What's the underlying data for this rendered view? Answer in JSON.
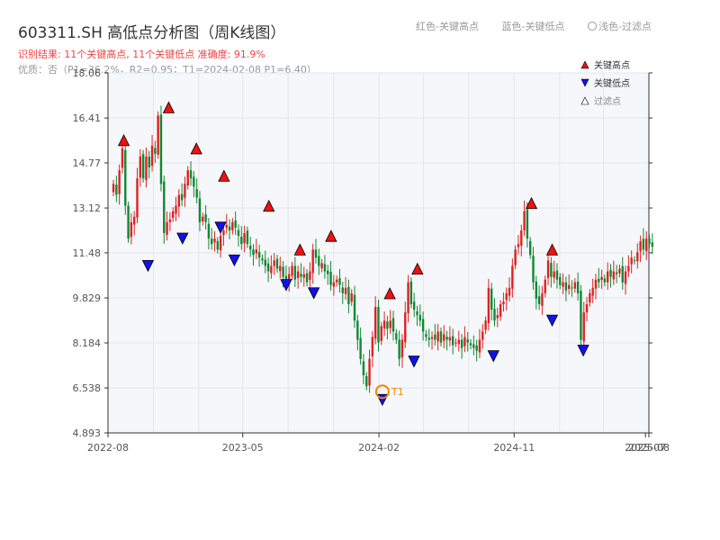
{
  "header": {
    "title": "603311.SH 高低点分析图（周K线图）",
    "result": "识别结果: 11个关键高点, 11个关键低点   准确度: 91.9%",
    "quality": "优质：否（P1=36.2%，R2=0.95；T1=2024-02-08 P1=6.40）",
    "legend_top": [
      "红色-关键高点",
      "蓝色-关键低点",
      "浅色-过滤点"
    ]
  },
  "colors": {
    "up": "#dd2222",
    "down": "#118833",
    "high_marker": "#ee1111",
    "low_marker": "#1111ee",
    "t1": "#ee8800",
    "plot_bg": "#f5f7fa",
    "grid": "#e3e6ea"
  },
  "chart_data": {
    "type": "candlestick",
    "title": "603311.SH 高低点分析图（周K线图）",
    "y_ticks": [
      "4.893",
      "6.538",
      "8.184",
      "9.829",
      "11.48",
      "13.12",
      "14.77",
      "16.41",
      "18.06"
    ],
    "ylim": [
      4.893,
      18.06
    ],
    "x_ticks": [
      "2022-08",
      "2023-05",
      "2024-02",
      "2024-11",
      "2025-07",
      "2025-08"
    ],
    "xlim": [
      "2022-08",
      "2025-08"
    ],
    "weekly_closes": [
      14.0,
      13.6,
      14.5,
      15.3,
      13.2,
      12.0,
      12.6,
      12.8,
      14.2,
      15.0,
      14.2,
      15.0,
      14.6,
      15.4,
      15.1,
      16.5,
      14.0,
      12.2,
      12.6,
      12.7,
      13.0,
      13.2,
      13.6,
      13.4,
      14.0,
      14.5,
      14.2,
      13.9,
      13.5,
      12.6,
      12.8,
      12.6,
      12.0,
      11.8,
      12.0,
      11.6,
      12.1,
      12.3,
      12.5,
      12.3,
      12.6,
      12.4,
      12.1,
      11.8,
      12.2,
      11.8,
      11.6,
      11.4,
      11.6,
      11.3,
      11.2,
      11.0,
      10.8,
      11.0,
      11.2,
      10.9,
      11.0,
      10.6,
      10.3,
      10.7,
      11.0,
      10.5,
      10.8,
      10.6,
      10.7,
      10.4,
      10.8,
      11.6,
      11.3,
      11.0,
      11.1,
      10.8,
      10.7,
      10.3,
      10.4,
      10.5,
      10.3,
      10.0,
      10.2,
      9.6,
      10.0,
      9.0,
      8.3,
      7.6,
      7.0,
      6.6,
      7.6,
      8.4,
      9.5,
      8.2,
      8.8,
      9.0,
      8.7,
      9.0,
      8.6,
      8.3,
      7.6,
      8.3,
      9.3,
      10.4,
      9.6,
      9.4,
      9.2,
      9.0,
      8.6,
      8.4,
      8.3,
      8.4,
      8.3,
      8.6,
      8.2,
      8.5,
      8.3,
      8.4,
      8.1,
      8.2,
      8.3,
      8.0,
      8.4,
      8.2,
      8.1,
      8.0,
      7.9,
      8.3,
      8.6,
      9.0,
      10.2,
      9.4,
      9.0,
      9.2,
      9.6,
      9.7,
      10.0,
      10.2,
      11.0,
      11.6,
      11.8,
      12.3,
      13.0,
      12.0,
      11.4,
      10.4,
      9.8,
      9.6,
      10.0,
      10.5,
      11.2,
      10.6,
      10.8,
      10.5,
      10.3,
      10.4,
      10.1,
      10.3,
      10.2,
      10.4,
      10.0,
      8.3,
      9.3,
      9.6,
      10.0,
      10.2,
      10.5,
      10.4,
      10.6,
      10.4,
      10.8,
      10.6,
      10.8,
      10.7,
      10.9,
      10.4,
      10.8,
      11.0,
      11.3,
      11.2,
      11.5,
      11.9,
      11.6,
      12.0,
      11.8,
      11.7
    ],
    "key_highs": [
      {
        "date": "2022-09-02",
        "value": 15.3
      },
      {
        "date": "2022-12-02",
        "value": 16.5
      },
      {
        "date": "2023-01-27",
        "value": 15.0
      },
      {
        "date": "2023-03-24",
        "value": 14.0
      },
      {
        "date": "2023-06-23",
        "value": 12.9
      },
      {
        "date": "2023-08-25",
        "value": 11.3
      },
      {
        "date": "2023-10-27",
        "value": 11.8
      },
      {
        "date": "2024-02-23",
        "value": 9.7
      },
      {
        "date": "2024-04-19",
        "value": 10.6
      },
      {
        "date": "2024-12-06",
        "value": 13.0
      },
      {
        "date": "2025-01-17",
        "value": 11.3
      }
    ],
    "key_lows": [
      {
        "date": "2022-10-21",
        "value": 11.3
      },
      {
        "date": "2022-12-30",
        "value": 12.3
      },
      {
        "date": "2023-03-17",
        "value": 12.7
      },
      {
        "date": "2023-04-14",
        "value": 11.5
      },
      {
        "date": "2023-07-28",
        "value": 10.6
      },
      {
        "date": "2023-09-22",
        "value": 10.3
      },
      {
        "date": "2024-02-08",
        "value": 6.4
      },
      {
        "date": "2024-04-12",
        "value": 7.8
      },
      {
        "date": "2024-09-20",
        "value": 8.0
      },
      {
        "date": "2025-01-17",
        "value": 9.3
      },
      {
        "date": "2025-03-21",
        "value": 8.2
      }
    ],
    "t1": {
      "date": "2024-02-08",
      "value": 6.4,
      "label": "T1"
    },
    "legend": [
      {
        "label": "关键高点",
        "marker": "triangle-up",
        "color": "#ee1111"
      },
      {
        "label": "关键低点",
        "marker": "triangle-down",
        "color": "#1111ee"
      },
      {
        "label": "过滤点",
        "marker": "triangle-up",
        "color": "#ffffff"
      }
    ],
    "legend_position": "top-right",
    "grid": true
  }
}
